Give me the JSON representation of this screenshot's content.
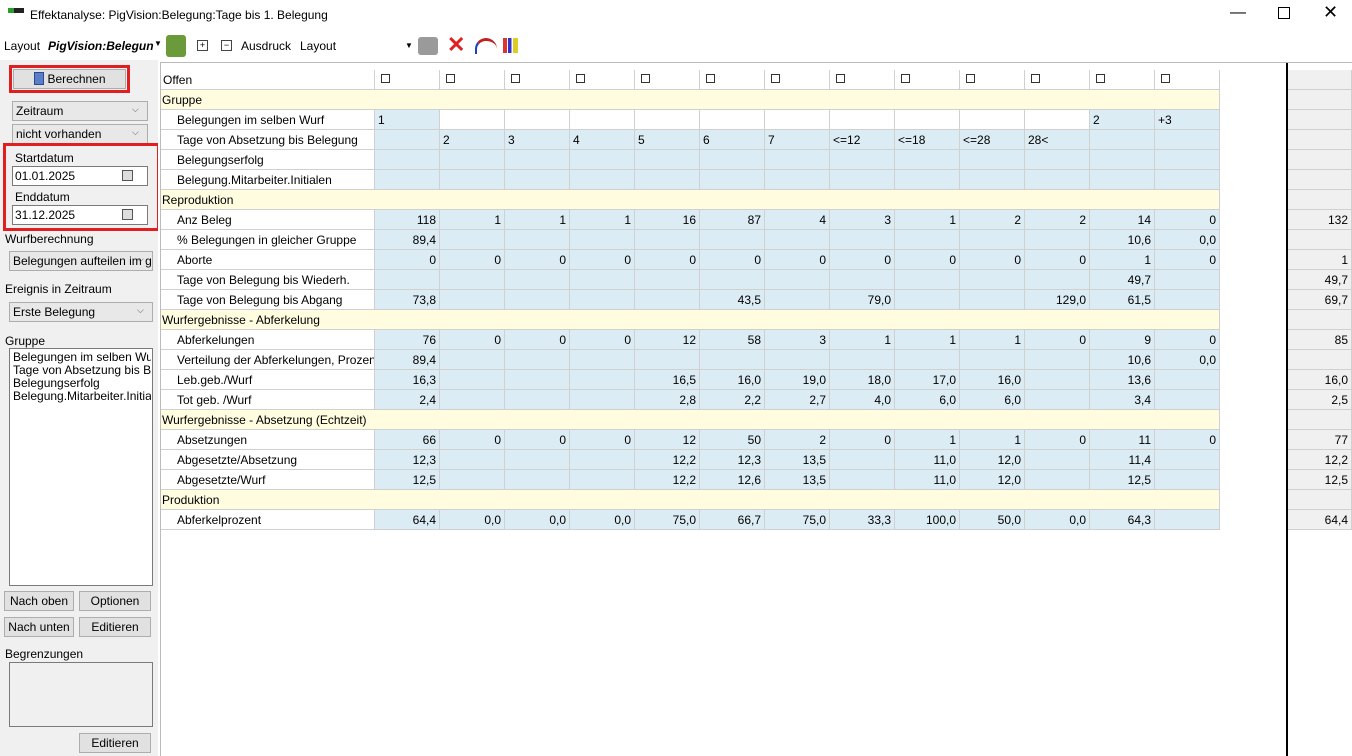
{
  "window": {
    "title": "Effektanalyse: PigVision:Belegung:Tage bis 1. Belegung"
  },
  "toolbar": {
    "layout_label": "Layout",
    "layout_value": "PigVision:Belegun",
    "print_label": "Ausdruck",
    "print_value": "Layout"
  },
  "sidebar": {
    "calculate": "Berechnen",
    "period": "Zeitraum",
    "period_value": "nicht vorhanden",
    "start_label": "Startdatum",
    "start_date": "01.01.2025",
    "end_label": "Enddatum",
    "end_date": "31.12.2025",
    "litter_label": "Wurfberechnung",
    "litter_value": "Belegungen aufteilen im g",
    "event_label": "Ereignis in Zeitraum",
    "event_value": "Erste Belegung",
    "group_label": "Gruppe",
    "group_items": [
      "Belegungen im selben Wurf",
      "Tage von Absetzung bis Bele",
      "Belegungserfolg",
      "Belegung.Mitarbeiter.Initialen"
    ],
    "up": "Nach oben",
    "options": "Optionen",
    "down": "Nach unten",
    "edit": "Editieren",
    "limits_label": "Begrenzungen",
    "limits_edit": "Editieren"
  },
  "grid": {
    "header": "Offen",
    "sections": [
      {
        "title": "Gruppe",
        "rows": [
          {
            "label": "Belegungen im selben Wurf",
            "cells": [
              "1",
              null,
              null,
              null,
              null,
              null,
              null,
              null,
              null,
              null,
              null,
              "2",
              "+3"
            ],
            "total": null
          },
          {
            "label": "Tage von Absetzung bis Belegung",
            "cells": [
              null,
              "2",
              "3",
              "4",
              "5",
              "6",
              "7",
              "<=12",
              "<=18",
              "<=28",
              "28<",
              null,
              null
            ],
            "total": null
          },
          {
            "label": "Belegungserfolg",
            "cells": [
              null,
              null,
              null,
              null,
              null,
              null,
              null,
              null,
              null,
              null,
              null,
              null,
              null
            ],
            "total": null
          },
          {
            "label": "Belegung.Mitarbeiter.Initialen",
            "cells": [
              null,
              null,
              null,
              null,
              null,
              null,
              null,
              null,
              null,
              null,
              null,
              null,
              null
            ],
            "total": null
          }
        ]
      },
      {
        "title": "Reproduktion",
        "rows": [
          {
            "label": "Anz Beleg",
            "cells": [
              "118",
              "1",
              "1",
              "1",
              "16",
              "87",
              "4",
              "3",
              "1",
              "2",
              "2",
              "14",
              "0"
            ],
            "total": "132"
          },
          {
            "label": "% Belegungen in gleicher Gruppe",
            "cells": [
              "89,4",
              null,
              null,
              null,
              null,
              null,
              null,
              null,
              null,
              null,
              null,
              "10,6",
              "0,0"
            ],
            "total": null
          },
          {
            "label": "Aborte",
            "cells": [
              "0",
              "0",
              "0",
              "0",
              "0",
              "0",
              "0",
              "0",
              "0",
              "0",
              "0",
              "1",
              "0"
            ],
            "total": "1"
          },
          {
            "label": "Tage von Belegung bis Wiederh.",
            "cells": [
              null,
              null,
              null,
              null,
              null,
              null,
              null,
              null,
              null,
              null,
              null,
              "49,7",
              null
            ],
            "total": "49,7"
          },
          {
            "label": "Tage von Belegung bis Abgang",
            "cells": [
              "73,8",
              null,
              null,
              null,
              null,
              "43,5",
              null,
              "79,0",
              null,
              null,
              "129,0",
              "61,5",
              null
            ],
            "total": "69,7"
          }
        ]
      },
      {
        "title": "Wurfergebnisse - Abferkelung",
        "rows": [
          {
            "label": "Abferkelungen",
            "cells": [
              "76",
              "0",
              "0",
              "0",
              "12",
              "58",
              "3",
              "1",
              "1",
              "1",
              "0",
              "9",
              "0"
            ],
            "total": "85"
          },
          {
            "label": "Verteilung der Abferkelungen, Prozent",
            "cells": [
              "89,4",
              null,
              null,
              null,
              null,
              null,
              null,
              null,
              null,
              null,
              null,
              "10,6",
              "0,0"
            ],
            "total": null
          },
          {
            "label": "Leb.geb./Wurf",
            "cells": [
              "16,3",
              null,
              null,
              null,
              "16,5",
              "16,0",
              "19,0",
              "18,0",
              "17,0",
              "16,0",
              null,
              "13,6",
              null
            ],
            "total": "16,0"
          },
          {
            "label": "Tot geb. /Wurf",
            "cells": [
              "2,4",
              null,
              null,
              null,
              "2,8",
              "2,2",
              "2,7",
              "4,0",
              "6,0",
              "6,0",
              null,
              "3,4",
              null
            ],
            "total": "2,5"
          }
        ]
      },
      {
        "title": "Wurfergebnisse - Absetzung (Echtzeit)",
        "rows": [
          {
            "label": "Absetzungen",
            "cells": [
              "66",
              "0",
              "0",
              "0",
              "12",
              "50",
              "2",
              "0",
              "1",
              "1",
              "0",
              "11",
              "0"
            ],
            "total": "77"
          },
          {
            "label": "Abgesetzte/Absetzung",
            "cells": [
              "12,3",
              null,
              null,
              null,
              "12,2",
              "12,3",
              "13,5",
              null,
              "11,0",
              "12,0",
              null,
              "11,4",
              null
            ],
            "total": "12,2"
          },
          {
            "label": "Abgesetzte/Wurf",
            "cells": [
              "12,5",
              null,
              null,
              null,
              "12,2",
              "12,6",
              "13,5",
              null,
              "11,0",
              "12,0",
              null,
              "12,5",
              null
            ],
            "total": "12,5"
          }
        ]
      },
      {
        "title": "Produktion",
        "rows": [
          {
            "label": "Abferkelprozent",
            "cells": [
              "64,4",
              "0,0",
              "0,0",
              "0,0",
              "75,0",
              "66,7",
              "75,0",
              "33,3",
              "100,0",
              "50,0",
              "0,0",
              "64,3",
              null
            ],
            "total": "64,4"
          }
        ]
      }
    ]
  }
}
